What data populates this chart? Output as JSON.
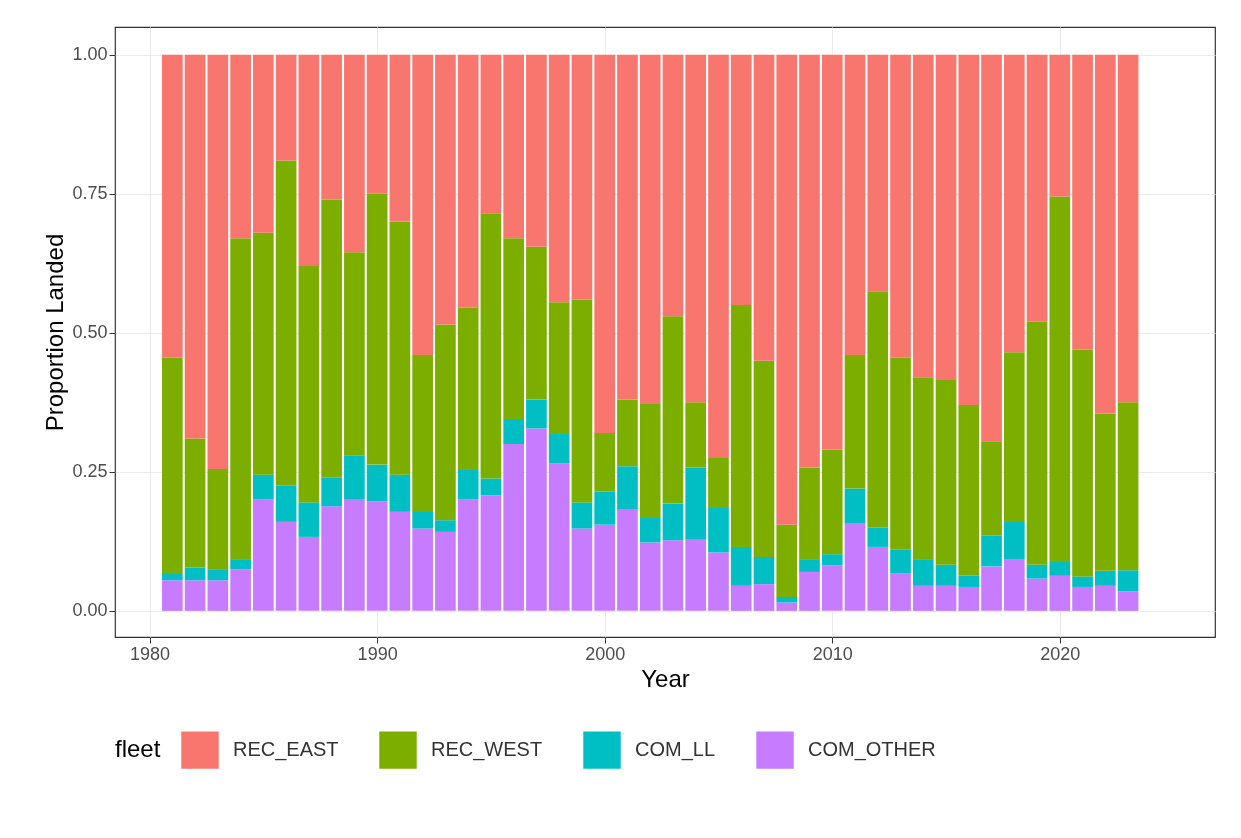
{
  "chart_data": {
    "type": "bar",
    "stacked": true,
    "xlabel": "Year",
    "ylabel": "Proportion Landed",
    "legend_title": "fleet",
    "x": [
      1981,
      1982,
      1983,
      1984,
      1985,
      1986,
      1987,
      1988,
      1989,
      1990,
      1991,
      1992,
      1993,
      1994,
      1995,
      1996,
      1997,
      1998,
      1999,
      2000,
      2001,
      2002,
      2003,
      2004,
      2005,
      2006,
      2007,
      2008,
      2009,
      2010,
      2011,
      2012,
      2013,
      2014,
      2015,
      2016,
      2017,
      2018,
      2019,
      2020,
      2021,
      2022,
      2023
    ],
    "series": [
      {
        "name": "COM_OTHER",
        "color": "#c77cff",
        "values": [
          0.055,
          0.055,
          0.055,
          0.075,
          0.2,
          0.16,
          0.133,
          0.188,
          0.2,
          0.197,
          0.178,
          0.148,
          0.142,
          0.2,
          0.208,
          0.3,
          0.328,
          0.265,
          0.148,
          0.155,
          0.183,
          0.123,
          0.127,
          0.128,
          0.105,
          0.045,
          0.048,
          0.015,
          0.07,
          0.082,
          0.158,
          0.115,
          0.068,
          0.045,
          0.045,
          0.043,
          0.08,
          0.092,
          0.058,
          0.063,
          0.043,
          0.045,
          0.035
        ]
      },
      {
        "name": "COM_LL",
        "color": "#00bfc4",
        "values": [
          0.013,
          0.023,
          0.02,
          0.018,
          0.045,
          0.065,
          0.062,
          0.052,
          0.08,
          0.066,
          0.067,
          0.03,
          0.021,
          0.055,
          0.03,
          0.045,
          0.052,
          0.053,
          0.047,
          0.06,
          0.077,
          0.044,
          0.066,
          0.13,
          0.08,
          0.07,
          0.049,
          0.01,
          0.023,
          0.02,
          0.062,
          0.035,
          0.042,
          0.048,
          0.038,
          0.02,
          0.055,
          0.068,
          0.025,
          0.025,
          0.019,
          0.027,
          0.038
        ]
      },
      {
        "name": "REC_WEST",
        "color": "#7cae00",
        "values": [
          0.387,
          0.232,
          0.18,
          0.577,
          0.435,
          0.585,
          0.425,
          0.5,
          0.365,
          0.487,
          0.455,
          0.282,
          0.352,
          0.29,
          0.477,
          0.325,
          0.275,
          0.237,
          0.365,
          0.105,
          0.12,
          0.205,
          0.337,
          0.117,
          0.09,
          0.435,
          0.353,
          0.13,
          0.165,
          0.188,
          0.24,
          0.425,
          0.345,
          0.327,
          0.332,
          0.307,
          0.17,
          0.305,
          0.437,
          0.657,
          0.408,
          0.283,
          0.302
        ]
      },
      {
        "name": "REC_EAST",
        "color": "#f8766d",
        "values": [
          0.545,
          0.69,
          0.745,
          0.33,
          0.32,
          0.19,
          0.38,
          0.26,
          0.355,
          0.25,
          0.3,
          0.54,
          0.485,
          0.455,
          0.285,
          0.33,
          0.345,
          0.445,
          0.44,
          0.68,
          0.62,
          0.628,
          0.47,
          0.625,
          0.725,
          0.45,
          0.55,
          0.845,
          0.742,
          0.71,
          0.54,
          0.425,
          0.545,
          0.58,
          0.585,
          0.63,
          0.695,
          0.535,
          0.48,
          0.255,
          0.53,
          0.645,
          0.625
        ]
      }
    ],
    "xlim": [
      1978.7,
      2026.6
    ],
    "xticks": [
      1980,
      1990,
      2000,
      2010,
      2020
    ],
    "ylim": [
      -0.047,
      1.05
    ],
    "yticks": [
      {
        "value": 0,
        "label": "0.00"
      },
      {
        "value": 0.25,
        "label": "0.25"
      },
      {
        "value": 0.5,
        "label": "0.50"
      },
      {
        "value": 0.75,
        "label": "0.75"
      },
      {
        "value": 1,
        "label": "1.00"
      }
    ],
    "grid": true,
    "legend": "bottom"
  }
}
